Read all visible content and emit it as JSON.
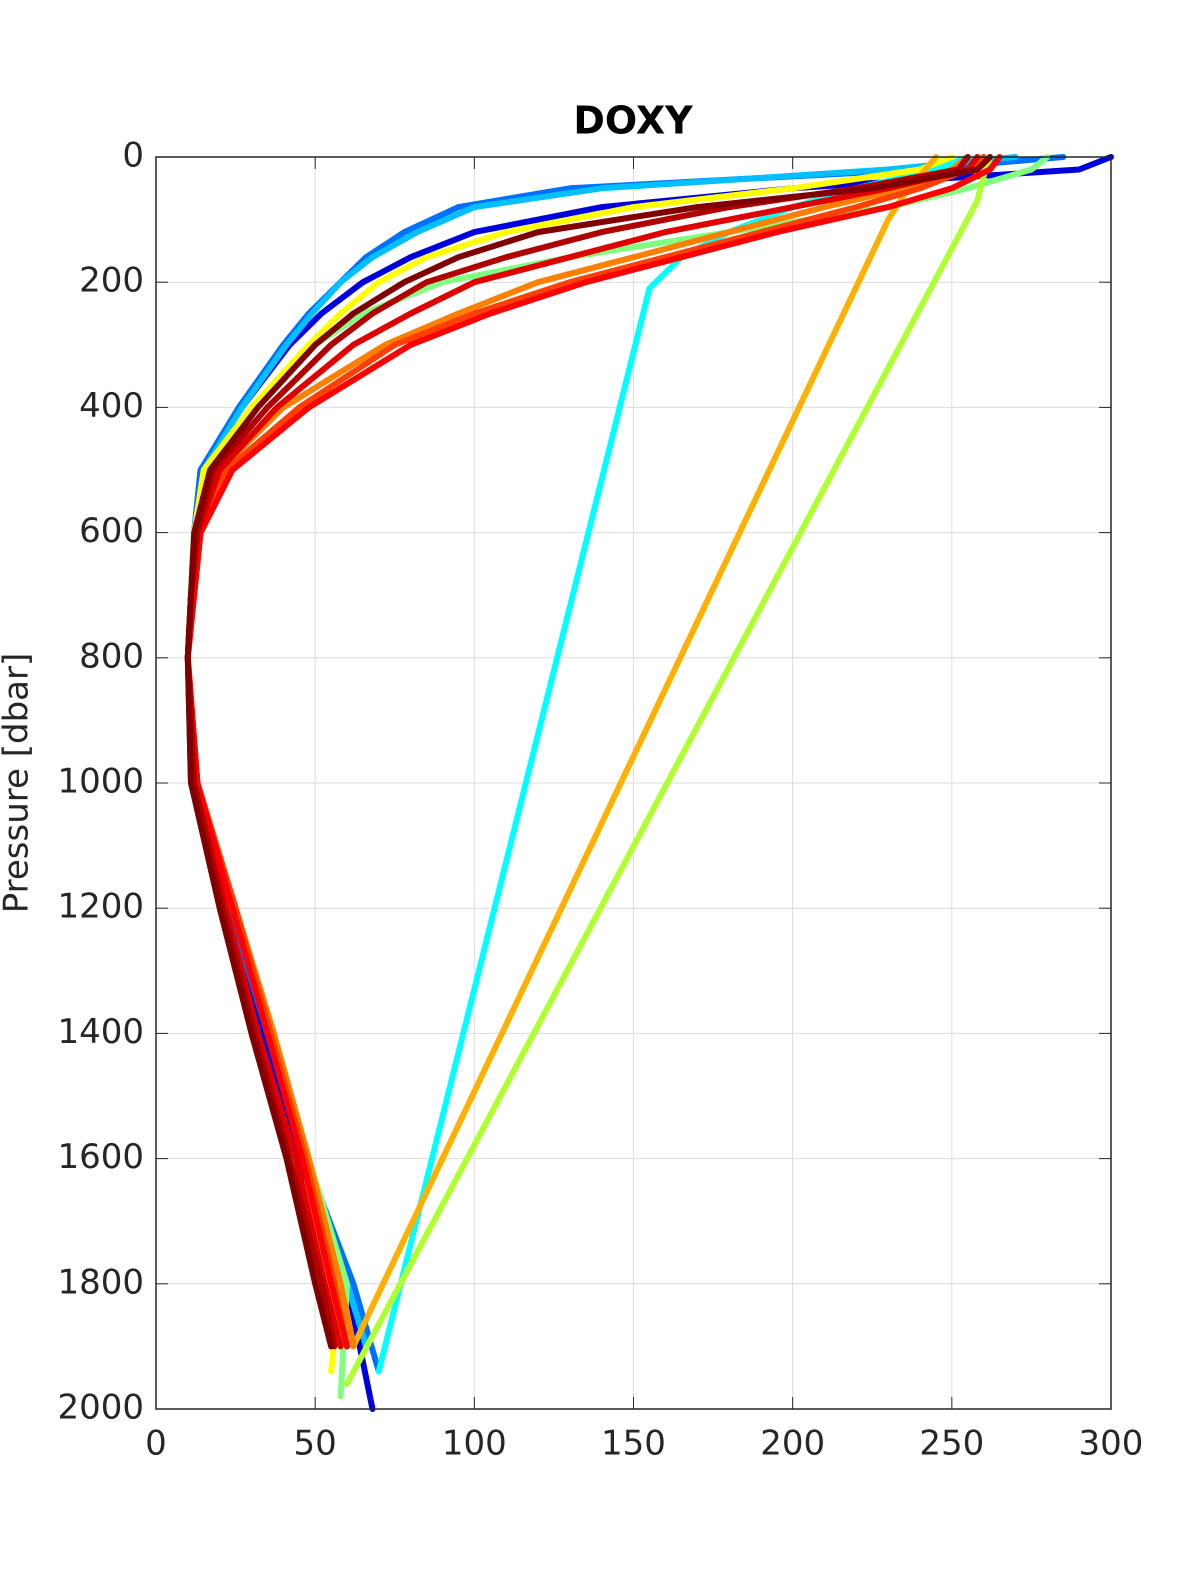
{
  "chart_data": {
    "type": "line",
    "title": "DOXY",
    "y_label": "Pressure [dbar]",
    "xlim": [
      0,
      300
    ],
    "xticks": [
      0,
      50,
      100,
      150,
      200,
      250,
      300
    ],
    "ylim": [
      0,
      2000
    ],
    "yticks": [
      0,
      200,
      400,
      600,
      800,
      1000,
      1200,
      1400,
      1600,
      1800,
      2000
    ],
    "y_reversed": true,
    "grid": true,
    "series": [
      {
        "color": "#0000dd",
        "x": [
          300,
          290,
          200,
          140,
          100,
          80,
          65,
          52,
          42,
          27,
          14,
          12,
          11,
          10,
          11,
          22,
          33,
          45,
          60,
          68
        ],
        "y": [
          0,
          20,
          50,
          80,
          120,
          160,
          200,
          250,
          300,
          400,
          500,
          600,
          700,
          800,
          1000,
          1200,
          1400,
          1600,
          1800,
          2000
        ]
      },
      {
        "color": "#0070ff",
        "x": [
          285,
          240,
          130,
          95,
          78,
          66,
          58,
          48,
          40,
          26,
          14,
          12,
          11,
          10,
          12,
          23,
          35,
          47,
          62,
          70
        ],
        "y": [
          0,
          20,
          50,
          80,
          120,
          160,
          200,
          250,
          300,
          400,
          500,
          600,
          700,
          800,
          1000,
          1200,
          1400,
          1600,
          1800,
          1940
        ]
      },
      {
        "color": "#00c0ff",
        "x": [
          270,
          230,
          140,
          100,
          82,
          68,
          58,
          49,
          41,
          27,
          15,
          12,
          11,
          10,
          12,
          24,
          36,
          47,
          60,
          66
        ],
        "y": [
          0,
          20,
          50,
          80,
          120,
          160,
          200,
          250,
          300,
          400,
          500,
          600,
          700,
          800,
          1000,
          1200,
          1400,
          1600,
          1800,
          1900
        ]
      },
      {
        "color": "#00ffff",
        "x": [
          255,
          245,
          220,
          200,
          180,
          165,
          155,
          70
        ],
        "y": [
          0,
          20,
          50,
          80,
          120,
          160,
          210,
          1940
        ]
      },
      {
        "color": "#80ff80",
        "x": [
          280,
          275,
          255,
          230,
          180,
          130,
          90,
          65,
          50,
          30,
          15,
          12,
          11,
          10,
          12,
          24,
          36,
          48,
          60,
          58
        ],
        "y": [
          0,
          20,
          50,
          80,
          120,
          160,
          200,
          250,
          300,
          400,
          500,
          600,
          700,
          800,
          1000,
          1200,
          1400,
          1600,
          1800,
          1980
        ]
      },
      {
        "color": "#b0ff30",
        "x": [
          262,
          260,
          258,
          60
        ],
        "y": [
          0,
          30,
          70,
          1960
        ]
      },
      {
        "color": "#ffff00",
        "x": [
          250,
          240,
          200,
          150,
          110,
          85,
          70,
          58,
          48,
          30,
          15,
          12,
          11,
          10,
          12,
          24,
          36,
          47,
          58,
          55
        ],
        "y": [
          0,
          20,
          50,
          80,
          120,
          160,
          200,
          250,
          300,
          400,
          500,
          600,
          700,
          800,
          1000,
          1200,
          1400,
          1600,
          1800,
          1940
        ]
      },
      {
        "color": "#ffb000",
        "x": [
          245,
          240,
          235,
          230,
          62
        ],
        "y": [
          0,
          30,
          60,
          100,
          1900
        ]
      },
      {
        "color": "#ff8000",
        "x": [
          255,
          250,
          235,
          210,
          180,
          150,
          120,
          95,
          72,
          40,
          20,
          13,
          11,
          10,
          13,
          25,
          37,
          48,
          58,
          62
        ],
        "y": [
          0,
          20,
          50,
          80,
          120,
          160,
          200,
          250,
          300,
          400,
          500,
          600,
          700,
          800,
          1000,
          1200,
          1400,
          1600,
          1800,
          1900
        ]
      },
      {
        "color": "#ff4000",
        "x": [
          260,
          255,
          240,
          220,
          190,
          160,
          130,
          100,
          75,
          45,
          22,
          14,
          11,
          10,
          13,
          25,
          36,
          47,
          56,
          60
        ],
        "y": [
          0,
          20,
          50,
          80,
          120,
          160,
          200,
          250,
          300,
          400,
          500,
          600,
          700,
          800,
          1000,
          1200,
          1400,
          1600,
          1800,
          1900
        ]
      },
      {
        "color": "#ff0000",
        "x": [
          265,
          262,
          250,
          230,
          195,
          165,
          135,
          105,
          80,
          48,
          24,
          14,
          12,
          10,
          13,
          24,
          35,
          46,
          55,
          60
        ],
        "y": [
          0,
          20,
          50,
          80,
          120,
          160,
          200,
          250,
          300,
          400,
          500,
          600,
          700,
          800,
          1000,
          1200,
          1400,
          1600,
          1800,
          1900
        ]
      },
      {
        "color": "#e00000",
        "x": [
          258,
          255,
          230,
          200,
          160,
          130,
          100,
          80,
          62,
          38,
          20,
          13,
          11,
          10,
          12,
          22,
          32,
          44,
          53,
          58
        ],
        "y": [
          0,
          20,
          50,
          80,
          120,
          160,
          200,
          250,
          300,
          400,
          500,
          600,
          700,
          800,
          1000,
          1200,
          1400,
          1600,
          1800,
          1900
        ]
      },
      {
        "color": "#b00000",
        "x": [
          255,
          252,
          220,
          180,
          140,
          110,
          85,
          68,
          55,
          35,
          18,
          13,
          11,
          10,
          12,
          21,
          31,
          42,
          52,
          56
        ],
        "y": [
          0,
          20,
          50,
          80,
          120,
          160,
          200,
          250,
          300,
          400,
          500,
          600,
          700,
          800,
          1000,
          1200,
          1400,
          1600,
          1800,
          1900
        ]
      },
      {
        "color": "#800000",
        "x": [
          262,
          258,
          225,
          170,
          120,
          95,
          78,
          62,
          50,
          32,
          17,
          12,
          11,
          10,
          11,
          20,
          30,
          41,
          50,
          55
        ],
        "y": [
          0,
          20,
          50,
          80,
          120,
          160,
          200,
          250,
          300,
          400,
          500,
          600,
          700,
          800,
          1000,
          1200,
          1400,
          1600,
          1800,
          1900
        ]
      }
    ]
  }
}
